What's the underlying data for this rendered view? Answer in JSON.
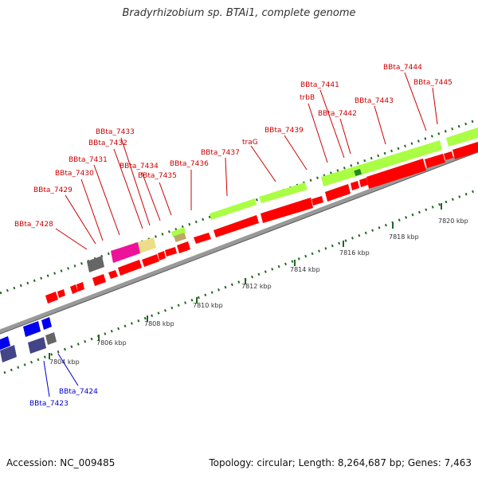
{
  "title": "Bradyrhizobium sp. BTAi1, complete genome",
  "footer": {
    "accession": "Accession: NC_009485",
    "stats": "Topology: circular; Length: 8,264,687 bp; Genes: 7,463"
  },
  "colors": {
    "red": "#ff0000",
    "lime": "#aaff44",
    "blue": "#0000ee",
    "slate": "#444488",
    "gray": "#666666",
    "magenta": "#ee1199",
    "khaki": "#eedd88",
    "label_red": "#cc0000",
    "label_blue": "#0000cc",
    "scale_green": "#226622",
    "backbone": "#999999"
  },
  "scale_labels": [
    "7804 kbp",
    "7806 kbp",
    "7808 kbp",
    "7810 kbp",
    "7812 kbp",
    "7814 kbp",
    "7816 kbp",
    "7818 kbp",
    "7820 kbp"
  ],
  "gene_labels": [
    {
      "text": "BBta_7423",
      "color": "blue"
    },
    {
      "text": "BBta_7424",
      "color": "blue"
    },
    {
      "text": "BBta_7428",
      "color": "red"
    },
    {
      "text": "BBta_7429",
      "color": "red"
    },
    {
      "text": "BBta_7430",
      "color": "red"
    },
    {
      "text": "BBta_7431",
      "color": "red"
    },
    {
      "text": "BBta_7432",
      "color": "red"
    },
    {
      "text": "BBta_7433",
      "color": "red"
    },
    {
      "text": "BBta_7434",
      "color": "red"
    },
    {
      "text": "BBta_7435",
      "color": "red"
    },
    {
      "text": "BBta_7436",
      "color": "red"
    },
    {
      "text": "BBta_7437",
      "color": "red"
    },
    {
      "text": "traG",
      "color": "red"
    },
    {
      "text": "BBta_7439",
      "color": "red"
    },
    {
      "text": "trbB",
      "color": "red"
    },
    {
      "text": "BBta_7441",
      "color": "red"
    },
    {
      "text": "BBta_7442",
      "color": "red"
    },
    {
      "text": "BBta_7443",
      "color": "red"
    },
    {
      "text": "BBta_7444",
      "color": "red"
    },
    {
      "text": "BBta_7445",
      "color": "red"
    }
  ]
}
